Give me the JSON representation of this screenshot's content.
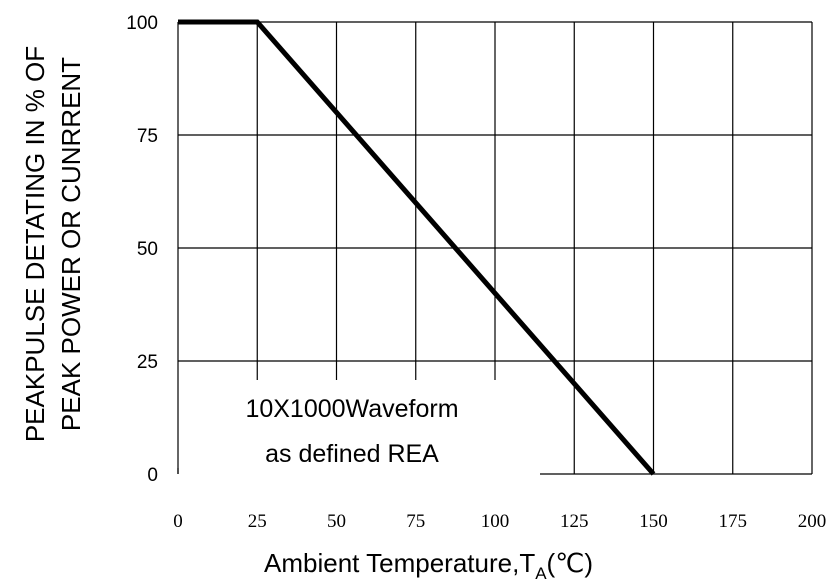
{
  "chart_data": {
    "type": "line",
    "ylabel_line1": "PEAKPULSE DETATING IN % OF",
    "ylabel_line2": "PEAK POWER OR CUNRRENT",
    "xlabel_main": "Ambient Temperature,T",
    "xlabel_sub": "A",
    "xlabel_unit": "(℃)",
    "annotation_line1": "10X1000Waveform",
    "annotation_line2": "as defined REA",
    "xlim": [
      0,
      200
    ],
    "ylim": [
      0,
      100
    ],
    "x_ticks": [
      "0",
      "25",
      "50",
      "75",
      "100",
      "125",
      "150",
      "175",
      "200"
    ],
    "y_ticks": [
      "0",
      "25",
      "50",
      "75",
      "100"
    ],
    "grid": true,
    "series": [
      {
        "x": [
          0,
          25,
          150
        ],
        "y": [
          100,
          100,
          0
        ]
      }
    ]
  }
}
